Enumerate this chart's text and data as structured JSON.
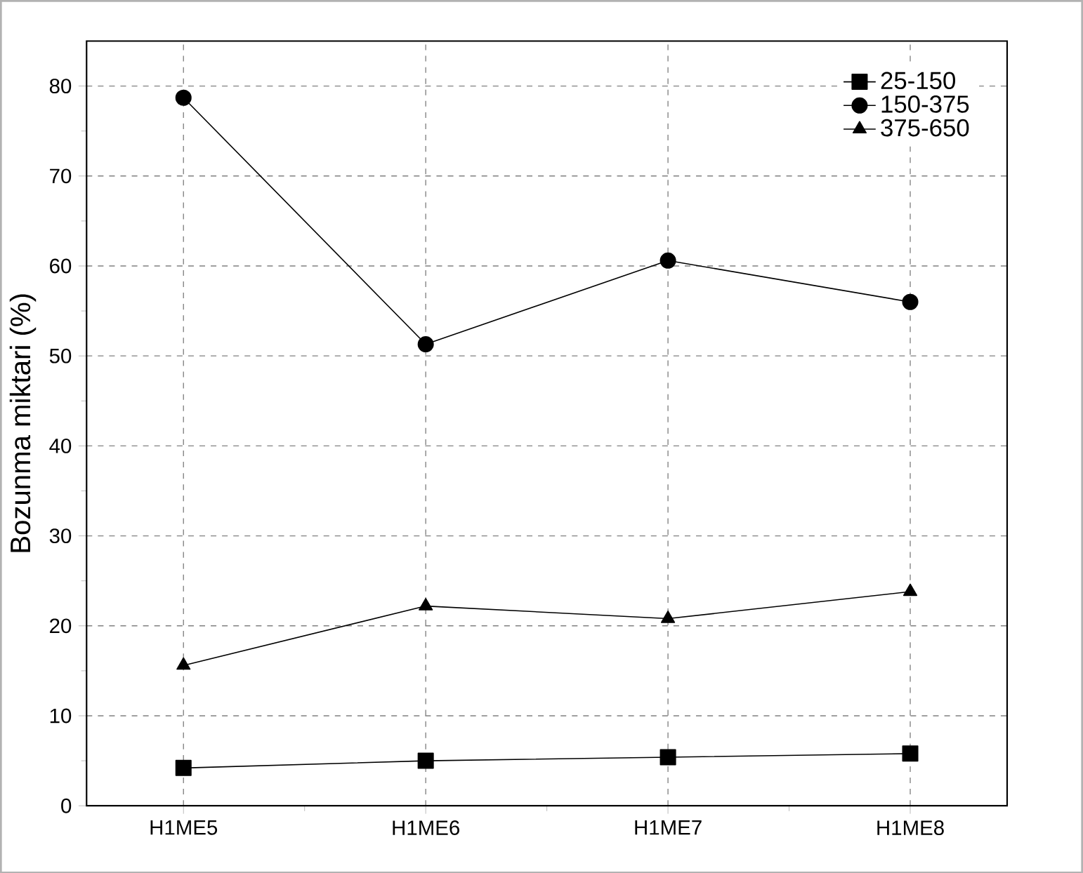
{
  "chart_data": {
    "type": "line",
    "ylabel": "Bozunma miktari (%)",
    "categories": [
      "H1ME5",
      "H1ME6",
      "H1ME7",
      "H1ME8"
    ],
    "series": [
      {
        "name": "25-150",
        "color": "#000000",
        "marker": "square",
        "values": [
          4.2,
          5.0,
          5.4,
          5.8
        ]
      },
      {
        "name": "150-375",
        "color": "#000000",
        "marker": "circle",
        "values": [
          78.7,
          51.3,
          60.6,
          56.0
        ]
      },
      {
        "name": "375-650",
        "color": "#000000",
        "marker": "triangle",
        "values": [
          15.6,
          22.2,
          20.8,
          23.8
        ]
      }
    ],
    "ylim": [
      0,
      85
    ],
    "yticks": [
      0,
      10,
      20,
      30,
      40,
      50,
      60,
      70,
      80
    ],
    "grid": true,
    "legend": "top right",
    "line_style": "solid"
  }
}
